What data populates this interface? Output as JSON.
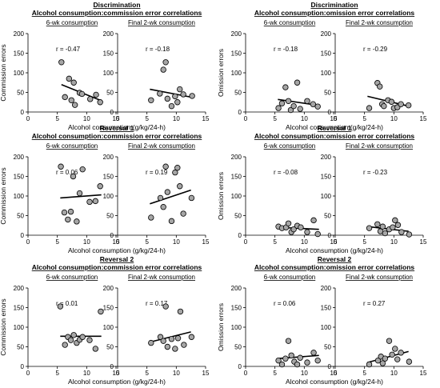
{
  "chart_data": [
    {
      "type": "scatter",
      "title": "Discrimination",
      "subtitle": "Alcohol consumption:commission error correlations",
      "ylabel": "Commission errors",
      "xlabel": "Alcohol consumption (g/kg/24-h)",
      "xlim": [
        0,
        15
      ],
      "ylim": [
        0,
        200
      ],
      "xticks": [
        "0",
        "5",
        "10",
        "15"
      ],
      "yticks": [
        "0",
        "50",
        "100",
        "150",
        "200"
      ],
      "grid": false,
      "panels": [
        {
          "label": "6-wk consumption",
          "r": "r = -0.47",
          "x": [
            5.7,
            6.3,
            7.0,
            7.4,
            7.8,
            8.0,
            8.8,
            9.2,
            10.6,
            11.6,
            12.3
          ],
          "y": [
            127,
            38,
            85,
            30,
            75,
            18,
            49,
            46,
            33,
            44,
            25
          ],
          "trend": [
            [
              5.7,
              70
            ],
            [
              12.3,
              30
            ]
          ]
        },
        {
          "label": "Final 2-wk consumption",
          "r": "r = -0.18",
          "x": [
            5.7,
            7.2,
            7.8,
            8.2,
            8.5,
            9.2,
            9.8,
            10.2,
            10.6,
            11.2,
            12.7
          ],
          "y": [
            30,
            47,
            108,
            127,
            34,
            15,
            40,
            25,
            58,
            45,
            41
          ],
          "trend": [
            [
              5.5,
              58
            ],
            [
              12.5,
              38
            ]
          ]
        }
      ]
    },
    {
      "type": "scatter",
      "title": "Discrimination",
      "subtitle": "Alcohol consumption:omission error correlations",
      "ylabel": "Omission errors",
      "xlabel": "Alcohol consumption (g/kg/24-h)",
      "xlim": [
        0,
        15
      ],
      "ylim": [
        0,
        200
      ],
      "xticks": [
        "0",
        "5",
        "10",
        "15"
      ],
      "yticks": [
        "0",
        "50",
        "100",
        "150",
        "200"
      ],
      "grid": false,
      "panels": [
        {
          "label": "6-wk consumption",
          "r": "r = -0.18",
          "x": [
            5.6,
            6.2,
            6.8,
            7.3,
            7.7,
            8.2,
            8.8,
            9.3,
            10.5,
            11.5,
            12.3
          ],
          "y": [
            10,
            22,
            63,
            28,
            5,
            15,
            75,
            8,
            28,
            20,
            14
          ],
          "trend": [
            [
              5.5,
              32
            ],
            [
              12.5,
              17
            ]
          ]
        },
        {
          "label": "Final 2-wk consumption",
          "r": "r = -0.29",
          "x": [
            5.8,
            7.2,
            7.6,
            8.0,
            8.3,
            9.0,
            9.6,
            10.0,
            10.6,
            11.2,
            12.5
          ],
          "y": [
            10,
            74,
            65,
            20,
            15,
            30,
            26,
            10,
            12,
            20,
            17
          ],
          "trend": [
            [
              5.5,
              40
            ],
            [
              12.5,
              15
            ]
          ]
        }
      ]
    },
    {
      "type": "scatter",
      "title": "Reversal 1",
      "subtitle": "Alcohol consumption:commission error correlations",
      "ylabel": "Commission errors",
      "xlabel": "Alcohol consumption (g/kg/24-h)",
      "xlim": [
        0,
        15
      ],
      "ylim": [
        0,
        200
      ],
      "xticks": [
        "0",
        "5",
        "10",
        "15"
      ],
      "yticks": [
        "0",
        "50",
        "100",
        "150",
        "200"
      ],
      "grid": false,
      "panels": [
        {
          "label": "6-wk consumption",
          "r": "r = 0.06",
          "x": [
            5.6,
            6.2,
            6.8,
            7.3,
            7.7,
            8.3,
            8.8,
            9.3,
            10.5,
            11.5,
            12.3
          ],
          "y": [
            175,
            58,
            40,
            60,
            150,
            35,
            107,
            168,
            85,
            87,
            125
          ],
          "trend": [
            [
              5.5,
              95
            ],
            [
              12.5,
              103
            ]
          ]
        },
        {
          "label": "Final 2-wk consumption",
          "r": "r = 0.19",
          "x": [
            5.7,
            7.3,
            7.8,
            8.2,
            8.5,
            9.2,
            9.8,
            10.2,
            10.6,
            11.2,
            12.6
          ],
          "y": [
            45,
            95,
            72,
            175,
            110,
            36,
            160,
            172,
            125,
            55,
            95
          ],
          "trend": [
            [
              5.5,
              80
            ],
            [
              12.5,
              115
            ]
          ]
        }
      ]
    },
    {
      "type": "scatter",
      "title": "Reversal 1",
      "subtitle": "Alcohol consumption:omission error correlations",
      "ylabel": "Omission errors",
      "xlabel": "Alcohol consumption (g/kg/24-h)",
      "xlim": [
        0,
        15
      ],
      "ylim": [
        0,
        200
      ],
      "xticks": [
        "0",
        "5",
        "10",
        "15"
      ],
      "yticks": [
        "0",
        "50",
        "100",
        "150",
        "200"
      ],
      "grid": false,
      "panels": [
        {
          "label": "6-wk consumption",
          "r": "r = -0.08",
          "x": [
            5.6,
            6.2,
            6.9,
            7.3,
            7.8,
            8.2,
            8.8,
            9.4,
            10.5,
            11.6,
            12.3
          ],
          "y": [
            22,
            18,
            20,
            30,
            8,
            15,
            24,
            20,
            8,
            38,
            3
          ],
          "trend": [
            [
              5.5,
              20
            ],
            [
              12.5,
              15
            ]
          ]
        },
        {
          "label": "Final 2-wk consumption",
          "r": "r = -0.23",
          "x": [
            5.8,
            7.2,
            7.7,
            8.1,
            8.5,
            9.2,
            9.8,
            10.2,
            10.7,
            11.3,
            12.6
          ],
          "y": [
            18,
            28,
            10,
            22,
            5,
            15,
            20,
            38,
            26,
            8,
            2
          ],
          "trend": [
            [
              5.5,
              22
            ],
            [
              12.5,
              10
            ]
          ]
        }
      ]
    },
    {
      "type": "scatter",
      "title": "Reversal 2",
      "subtitle": "Alcohol consumption:commission error correlations",
      "ylabel": "Commission errors",
      "xlabel": "Alcohol consumption (g/kg/24-h)",
      "xlim": [
        0,
        15
      ],
      "ylim": [
        0,
        200
      ],
      "xticks": [
        "0",
        "5",
        "10",
        "15"
      ],
      "yticks": [
        "0",
        "50",
        "100",
        "150",
        "200"
      ],
      "grid": false,
      "panels": [
        {
          "label": "6-wk consumption",
          "r": "r = 0.01",
          "x": [
            5.5,
            6.3,
            6.8,
            7.3,
            7.8,
            8.3,
            8.8,
            9.3,
            10.5,
            11.5,
            12.4
          ],
          "y": [
            153,
            55,
            75,
            67,
            80,
            60,
            68,
            75,
            67,
            45,
            140
          ],
          "trend": [
            [
              5.5,
              77
            ],
            [
              12.5,
              77
            ]
          ]
        },
        {
          "label": "Final 2-wk consumption",
          "r": "r = 0.17",
          "x": [
            5.7,
            7.3,
            7.8,
            8.2,
            8.5,
            9.2,
            9.8,
            10.3,
            10.7,
            11.3,
            12.6
          ],
          "y": [
            60,
            75,
            65,
            153,
            50,
            70,
            45,
            72,
            140,
            55,
            75
          ],
          "trend": [
            [
              5.5,
              62
            ],
            [
              12.5,
              88
            ]
          ]
        }
      ]
    },
    {
      "type": "scatter",
      "title": "Reversal 2",
      "subtitle": "Alcohol consumption:omission error correlations",
      "ylabel": "Omission errors",
      "xlabel": "Alcohol consumption (g/kg/24-h)",
      "xlim": [
        0,
        15
      ],
      "ylim": [
        0,
        200
      ],
      "xticks": [
        "0",
        "5",
        "10",
        "15"
      ],
      "yticks": [
        "0",
        "50",
        "100",
        "150",
        "200"
      ],
      "grid": false,
      "panels": [
        {
          "label": "6-wk consumption",
          "r": "r = 0.06",
          "x": [
            5.6,
            6.2,
            6.8,
            7.3,
            7.8,
            8.3,
            8.8,
            9.3,
            10.5,
            11.6,
            12.3
          ],
          "y": [
            15,
            5,
            20,
            65,
            28,
            12,
            5,
            22,
            10,
            35,
            15
          ],
          "trend": [
            [
              5.5,
              20
            ],
            [
              12.5,
              28
            ]
          ]
        },
        {
          "label": "Final 2-wk consumption",
          "r": "r = 0.27",
          "x": [
            5.8,
            7.3,
            7.8,
            8.1,
            8.5,
            9.2,
            9.7,
            10.2,
            10.6,
            11.2,
            12.6
          ],
          "y": [
            5,
            15,
            25,
            8,
            20,
            65,
            30,
            45,
            18,
            35,
            12
          ],
          "trend": [
            [
              5.5,
              10
            ],
            [
              12.5,
              38
            ]
          ]
        }
      ]
    }
  ]
}
